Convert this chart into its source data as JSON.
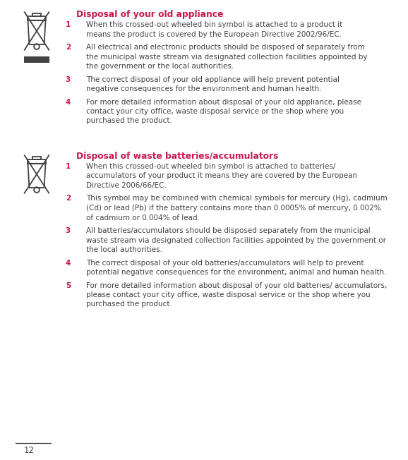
{
  "bg_color": "#ffffff",
  "text_color": "#414042",
  "heading_color": "#c8174c",
  "page_number": "12",
  "section1_title": "Disposal of your old appliance",
  "section1_items": [
    [
      "When this crossed-out wheeled bin symbol is attached to a product it",
      "means the product is covered by the European Directive 2002/96/EC."
    ],
    [
      "All electrical and electronic products should be disposed of separately from",
      "the municipal waste stream via designated collection facilities appointed by",
      "the government or the local authorities."
    ],
    [
      "The correct disposal of your old appliance will help prevent potential",
      "negative consequences for the environment and human health."
    ],
    [
      "For more detailed information about disposal of your old appliance, please",
      "contact your city office, waste disposal service or the shop where you",
      "purchased the product."
    ]
  ],
  "section2_title": "Disposal of waste batteries/accumulators",
  "section2_items": [
    [
      "When this crossed-out wheeled bin symbol is attached to batteries/",
      "accumulators of your product it means they are covered by the European",
      "Directive 2006/66/EC."
    ],
    [
      "This symbol may be combined with chemical symbols for mercury (Hg), cadmium",
      "(Cd) or lead (Pb) if the battery contains more than 0.0005% of mercury, 0.002%",
      "of cadmium or 0.004% of lead."
    ],
    [
      "All batteries/accumulators should be disposed separately from the municipal",
      "waste stream via designated collection facilities appointed by the government or",
      "the local authorities."
    ],
    [
      "The correct disposal of your old batteries/accumulators will help to prevent",
      "potential negative consequences for the environment, animal and human health."
    ],
    [
      "For more detailed information about disposal of your old batteries/ accumulators,",
      "please contact your city office, waste disposal service or the shop where you",
      "purchased the product."
    ]
  ],
  "font_size_body": 7.5,
  "font_size_heading": 8.8,
  "font_size_page": 8.5,
  "icon_color": "#414042",
  "bar_color": "#414042"
}
